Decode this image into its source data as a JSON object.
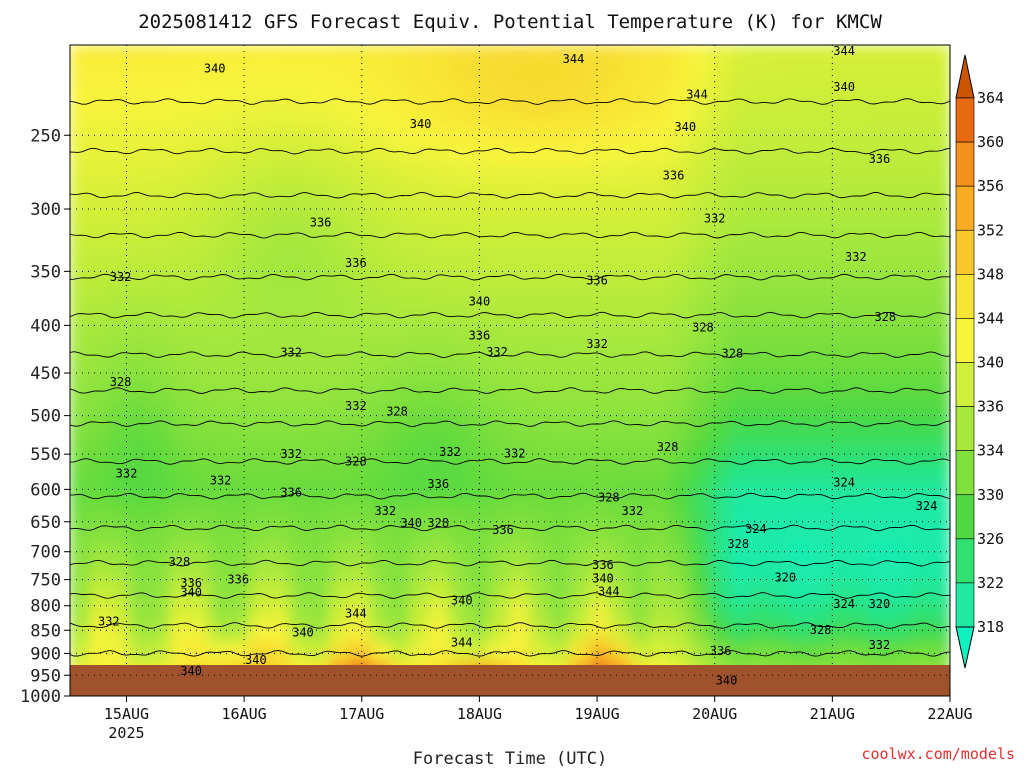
{
  "page": {
    "credit": "coolwx.com/models"
  },
  "chart_data": {
    "type": "heatmap",
    "title": "2025081412 GFS Forecast Equiv. Potential Temperature (K) for KMCW",
    "xlabel": "Forecast Time (UTC)",
    "ylabel": "",
    "x_ticks": [
      "15AUG",
      "16AUG",
      "17AUG",
      "18AUG",
      "19AUG",
      "20AUG",
      "21AUG",
      "22AUG"
    ],
    "x_year_label": "2025",
    "xlim_days": [
      14.52,
      22.0
    ],
    "y_ticks": [
      250,
      300,
      350,
      400,
      450,
      500,
      550,
      600,
      650,
      700,
      750,
      800,
      850,
      900,
      950,
      1000
    ],
    "y_tick_labels": [
      "250",
      "300",
      "350",
      "400",
      "450",
      "500",
      "550",
      "600",
      "650",
      "700",
      "750",
      "800",
      "850",
      "900",
      "950",
      "1000"
    ],
    "ylim_hpa": [
      200,
      1000
    ],
    "y_scale": "log-pressure (inverted)",
    "grid": true,
    "colorbar": {
      "ticks": [
        "364",
        "360",
        "356",
        "352",
        "348",
        "344",
        "340",
        "336",
        "334",
        "330",
        "326",
        "322",
        "318"
      ],
      "colors": [
        "#cc5500",
        "#e86a10",
        "#f4901c",
        "#f7ac24",
        "#f8c82c",
        "#f8e434",
        "#f8f43c",
        "#d0f03c",
        "#a8e83c",
        "#80e03c",
        "#50d840",
        "#30e070",
        "#20e8a0",
        "#10f0c0"
      ],
      "range_K": [
        318,
        364
      ],
      "extend": "both"
    },
    "contour_labels": [
      {
        "t": 15.75,
        "p": 212,
        "v": 340
      },
      {
        "t": 17.5,
        "p": 243,
        "v": 340
      },
      {
        "t": 18.8,
        "p": 207,
        "v": 344
      },
      {
        "t": 19.85,
        "p": 226,
        "v": 344
      },
      {
        "t": 21.1,
        "p": 203,
        "v": 344
      },
      {
        "t": 21.1,
        "p": 222,
        "v": 340
      },
      {
        "t": 19.75,
        "p": 245,
        "v": 340
      },
      {
        "t": 19.65,
        "p": 276,
        "v": 336
      },
      {
        "t": 21.4,
        "p": 265,
        "v": 336
      },
      {
        "t": 16.65,
        "p": 310,
        "v": 336
      },
      {
        "t": 16.95,
        "p": 343,
        "v": 336
      },
      {
        "t": 14.95,
        "p": 355,
        "v": 332
      },
      {
        "t": 18.0,
        "p": 377,
        "v": 340
      },
      {
        "t": 19.0,
        "p": 358,
        "v": 336
      },
      {
        "t": 20.0,
        "p": 307,
        "v": 332
      },
      {
        "t": 21.2,
        "p": 338,
        "v": 332
      },
      {
        "t": 18.0,
        "p": 410,
        "v": 336
      },
      {
        "t": 18.15,
        "p": 427,
        "v": 332
      },
      {
        "t": 19.0,
        "p": 419,
        "v": 332
      },
      {
        "t": 19.9,
        "p": 402,
        "v": 328
      },
      {
        "t": 21.45,
        "p": 392,
        "v": 328
      },
      {
        "t": 16.4,
        "p": 428,
        "v": 332
      },
      {
        "t": 20.15,
        "p": 429,
        "v": 328
      },
      {
        "t": 14.95,
        "p": 460,
        "v": 328
      },
      {
        "t": 16.95,
        "p": 488,
        "v": 332
      },
      {
        "t": 17.3,
        "p": 495,
        "v": 328
      },
      {
        "t": 15.0,
        "p": 577,
        "v": 332
      },
      {
        "t": 16.4,
        "p": 550,
        "v": 332
      },
      {
        "t": 16.95,
        "p": 560,
        "v": 328
      },
      {
        "t": 17.75,
        "p": 547,
        "v": 332
      },
      {
        "t": 18.3,
        "p": 549,
        "v": 332
      },
      {
        "t": 19.6,
        "p": 540,
        "v": 328
      },
      {
        "t": 15.8,
        "p": 587,
        "v": 332
      },
      {
        "t": 16.4,
        "p": 605,
        "v": 336
      },
      {
        "t": 17.65,
        "p": 592,
        "v": 336
      },
      {
        "t": 21.1,
        "p": 590,
        "v": 324
      },
      {
        "t": 19.1,
        "p": 612,
        "v": 328
      },
      {
        "t": 19.3,
        "p": 633,
        "v": 332
      },
      {
        "t": 17.2,
        "p": 633,
        "v": 332
      },
      {
        "t": 17.42,
        "p": 652,
        "v": 340
      },
      {
        "t": 17.65,
        "p": 652,
        "v": 328
      },
      {
        "t": 21.8,
        "p": 625,
        "v": 324
      },
      {
        "t": 18.2,
        "p": 663,
        "v": 336
      },
      {
        "t": 20.35,
        "p": 662,
        "v": 324
      },
      {
        "t": 20.2,
        "p": 687,
        "v": 328
      },
      {
        "t": 15.45,
        "p": 718,
        "v": 328
      },
      {
        "t": 19.05,
        "p": 723,
        "v": 336
      },
      {
        "t": 19.05,
        "p": 748,
        "v": 340
      },
      {
        "t": 15.55,
        "p": 756,
        "v": 336
      },
      {
        "t": 15.95,
        "p": 750,
        "v": 336
      },
      {
        "t": 15.55,
        "p": 774,
        "v": 340
      },
      {
        "t": 20.6,
        "p": 746,
        "v": 320
      },
      {
        "t": 19.1,
        "p": 772,
        "v": 344
      },
      {
        "t": 17.85,
        "p": 790,
        "v": 340
      },
      {
        "t": 21.1,
        "p": 797,
        "v": 324
      },
      {
        "t": 21.4,
        "p": 797,
        "v": 320
      },
      {
        "t": 16.95,
        "p": 815,
        "v": 344
      },
      {
        "t": 14.85,
        "p": 832,
        "v": 332
      },
      {
        "t": 16.5,
        "p": 855,
        "v": 340
      },
      {
        "t": 20.9,
        "p": 849,
        "v": 328
      },
      {
        "t": 17.85,
        "p": 876,
        "v": 344
      },
      {
        "t": 21.4,
        "p": 882,
        "v": 332
      },
      {
        "t": 16.1,
        "p": 915,
        "v": 340
      },
      {
        "t": 20.05,
        "p": 895,
        "v": 336
      },
      {
        "t": 15.55,
        "p": 940,
        "v": 340
      },
      {
        "t": 20.1,
        "p": 962,
        "v": 340
      }
    ]
  }
}
